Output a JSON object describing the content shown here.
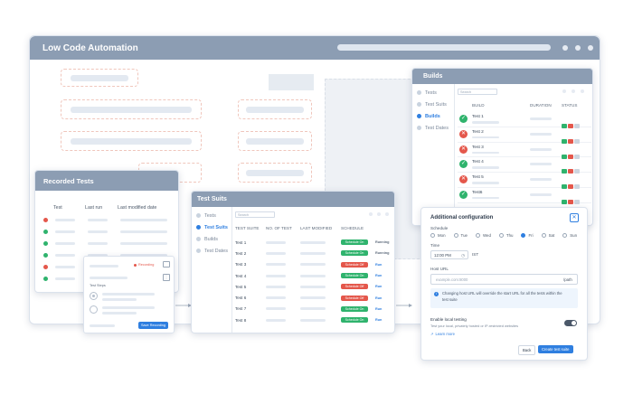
{
  "main_window": {
    "title": "Low Code Automation"
  },
  "recorded_tests": {
    "title": "Recorded Tests",
    "columns": [
      "Test",
      "Last run",
      "Last modified date"
    ],
    "row_status_colors": [
      "#e4574b",
      "#2fb36d",
      "#2fb36d",
      "#2fb36d",
      "#e4574b",
      "#2fb36d"
    ]
  },
  "recorder": {
    "recording_label": "Recording",
    "test_steps_label": "Test Steps",
    "save_label": "Save Recording"
  },
  "test_suits": {
    "title": "Test Suits",
    "sidebar": [
      "Tests",
      "Test Suits",
      "Builds",
      "Test Dates"
    ],
    "search_placeholder": "Search",
    "columns": [
      "TEST SUITE",
      "NO. OF TEST",
      "LAST MODIFIED",
      "SCHEDULE"
    ],
    "rows": [
      {
        "name": "Test 1",
        "schedule": "Schedule On",
        "state": "Running",
        "on": true
      },
      {
        "name": "Test 2",
        "schedule": "Schedule On",
        "state": "Running",
        "on": true
      },
      {
        "name": "Test 3",
        "schedule": "Schedule Off",
        "state": "Run",
        "on": false
      },
      {
        "name": "Test 4",
        "schedule": "Schedule On",
        "state": "Run",
        "on": true
      },
      {
        "name": "Test 5",
        "schedule": "Schedule Off",
        "state": "Run",
        "on": false
      },
      {
        "name": "Test 6",
        "schedule": "Schedule Off",
        "state": "Run",
        "on": false
      },
      {
        "name": "Test 7",
        "schedule": "Schedule On",
        "state": "Run",
        "on": true
      },
      {
        "name": "Test 8",
        "schedule": "Schedule On",
        "state": "Run",
        "on": true
      }
    ]
  },
  "builds": {
    "title": "Builds",
    "sidebar": [
      "Tests",
      "Test Suits",
      "Builds",
      "Test Dates"
    ],
    "search_placeholder": "Search",
    "columns": [
      "BUILD",
      "DURATION",
      "STATUS"
    ],
    "rows": [
      {
        "name": "Test 1",
        "pass": true
      },
      {
        "name": "Test 2",
        "pass": false
      },
      {
        "name": "Test 3",
        "pass": false
      },
      {
        "name": "Test 4",
        "pass": true
      },
      {
        "name": "Test 5",
        "pass": false
      },
      {
        "name": "Test6",
        "pass": true
      }
    ]
  },
  "config": {
    "title": "Additional configuration",
    "schedule_label": "Schedule",
    "days": [
      "Mon",
      "Tue",
      "Wed",
      "Thu",
      "Fri",
      "Sat",
      "Sun"
    ],
    "selected_day": "Fri",
    "time_label": "Time",
    "time_value": "12:00 PM",
    "timezone": "IST",
    "host_label": "Host URL",
    "host_placeholder": "example.com:8000",
    "host_suffix": "/path",
    "info_text": "Changing host URL will override the start URL for all the tests within the test suite",
    "local_label": "Enable local testing",
    "local_desc": "Test your local, privately hosted or IP-restricted websites",
    "learn_more": "Learn more",
    "back_label": "Back",
    "create_label": "Create test suite"
  },
  "colors": {
    "accent": "#2f7fe0",
    "header": "#8c9db3",
    "pass": "#2fb36d",
    "fail": "#e4574b"
  }
}
